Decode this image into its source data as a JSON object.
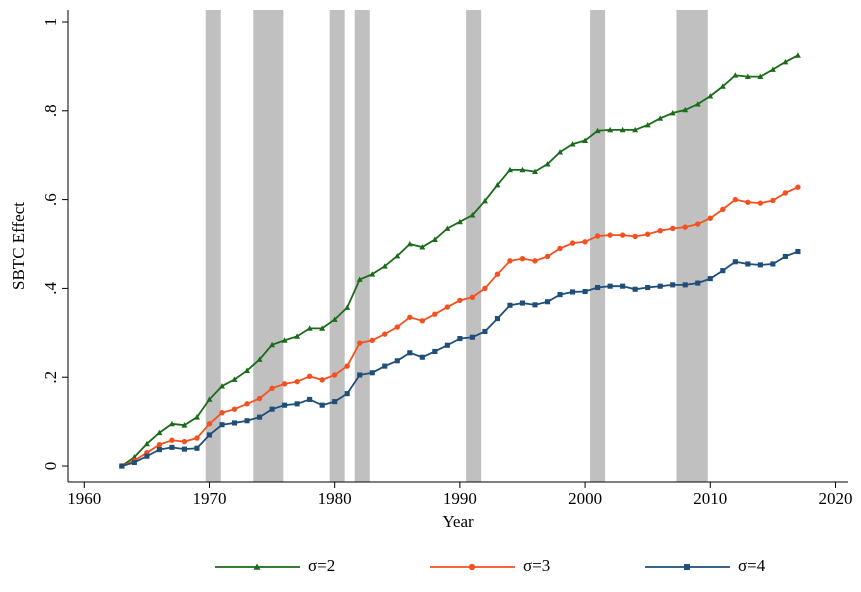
{
  "chart_data": {
    "type": "line",
    "x_label": "Year",
    "y_label": "SBTC Effect",
    "x": [
      1963,
      1964,
      1965,
      1966,
      1967,
      1968,
      1969,
      1970,
      1971,
      1972,
      1973,
      1974,
      1975,
      1976,
      1977,
      1978,
      1979,
      1980,
      1981,
      1982,
      1983,
      1984,
      1985,
      1986,
      1987,
      1988,
      1989,
      1990,
      1991,
      1992,
      1993,
      1994,
      1995,
      1996,
      1997,
      1998,
      1999,
      2000,
      2001,
      2002,
      2003,
      2004,
      2005,
      2006,
      2007,
      2008,
      2009,
      2010,
      2011,
      2012,
      2013,
      2014,
      2015,
      2016,
      2017
    ],
    "series": [
      {
        "name": "σ=2",
        "color": "#1a6b1a",
        "marker": "triangle",
        "values": [
          0,
          0.02,
          0.05,
          0.075,
          0.095,
          0.092,
          0.11,
          0.15,
          0.18,
          0.195,
          0.215,
          0.24,
          0.273,
          0.283,
          0.292,
          0.31,
          0.31,
          0.33,
          0.357,
          0.42,
          0.432,
          0.45,
          0.473,
          0.5,
          0.493,
          0.51,
          0.535,
          0.55,
          0.565,
          0.597,
          0.633,
          0.667,
          0.667,
          0.663,
          0.68,
          0.707,
          0.725,
          0.733,
          0.755,
          0.757,
          0.757,
          0.757,
          0.768,
          0.783,
          0.795,
          0.802,
          0.815,
          0.833,
          0.855,
          0.88,
          0.877,
          0.877,
          0.893,
          0.91,
          0.925
        ]
      },
      {
        "name": "σ=3",
        "color": "#f4511e",
        "marker": "circle",
        "values": [
          0,
          0.012,
          0.03,
          0.048,
          0.058,
          0.055,
          0.063,
          0.095,
          0.12,
          0.128,
          0.14,
          0.152,
          0.175,
          0.185,
          0.19,
          0.202,
          0.194,
          0.205,
          0.225,
          0.277,
          0.283,
          0.297,
          0.313,
          0.335,
          0.327,
          0.342,
          0.358,
          0.373,
          0.38,
          0.4,
          0.432,
          0.462,
          0.467,
          0.462,
          0.472,
          0.49,
          0.502,
          0.505,
          0.518,
          0.52,
          0.52,
          0.517,
          0.522,
          0.53,
          0.535,
          0.538,
          0.545,
          0.558,
          0.578,
          0.6,
          0.594,
          0.592,
          0.598,
          0.615,
          0.628
        ]
      },
      {
        "name": "σ=4",
        "color": "#1f4e79",
        "marker": "square",
        "values": [
          0,
          0.008,
          0.022,
          0.037,
          0.042,
          0.038,
          0.04,
          0.07,
          0.093,
          0.097,
          0.102,
          0.11,
          0.128,
          0.137,
          0.14,
          0.15,
          0.137,
          0.145,
          0.163,
          0.205,
          0.21,
          0.225,
          0.237,
          0.255,
          0.245,
          0.258,
          0.272,
          0.287,
          0.29,
          0.303,
          0.332,
          0.362,
          0.367,
          0.363,
          0.37,
          0.386,
          0.392,
          0.393,
          0.402,
          0.405,
          0.405,
          0.398,
          0.402,
          0.405,
          0.408,
          0.408,
          0.412,
          0.422,
          0.44,
          0.46,
          0.455,
          0.453,
          0.455,
          0.472,
          0.483
        ]
      }
    ],
    "shaded_regions": [
      [
        1969.7,
        1970.9
      ],
      [
        1973.5,
        1975.9
      ],
      [
        1979.6,
        1980.8
      ],
      [
        1981.6,
        1982.8
      ],
      [
        1990.5,
        1991.7
      ],
      [
        2000.4,
        2001.6
      ],
      [
        2007.3,
        2009.8
      ]
    ],
    "shade_color": "#c0c0c0",
    "xlim": [
      1958.7,
      2021
    ],
    "xticks": [
      1960,
      1970,
      1980,
      1990,
      2000,
      2010,
      2020
    ],
    "ylim": [
      -0.036,
      1.027
    ],
    "yticks": [
      0,
      {
        "value": 0.2,
        "label": ".2"
      },
      {
        "value": 0.4,
        "label": ".4"
      },
      {
        "value": 0.6,
        "label": ".6"
      },
      {
        "value": 0.8,
        "label": ".8"
      },
      1
    ],
    "legend": "bottom"
  }
}
